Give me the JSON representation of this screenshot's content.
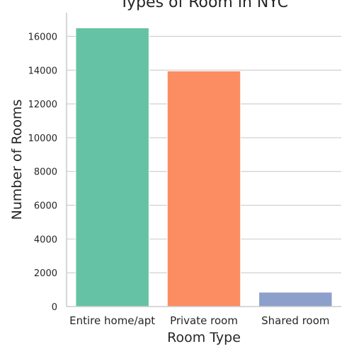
{
  "chart_data": {
    "type": "bar",
    "title": "Types of Room in NYC",
    "xlabel": "Room Type",
    "ylabel": "Number of Rooms",
    "categories": [
      "Entire home/apt",
      "Private room",
      "Shared room"
    ],
    "values": [
      16500,
      13950,
      850
    ],
    "colors": [
      "#66c2a5",
      "#fc8d62",
      "#8da0cb"
    ],
    "ylim": [
      0,
      17400
    ],
    "yticks": [
      0,
      2000,
      4000,
      6000,
      8000,
      10000,
      12000,
      14000,
      16000
    ],
    "grid": "horizontal",
    "legend": "none"
  }
}
